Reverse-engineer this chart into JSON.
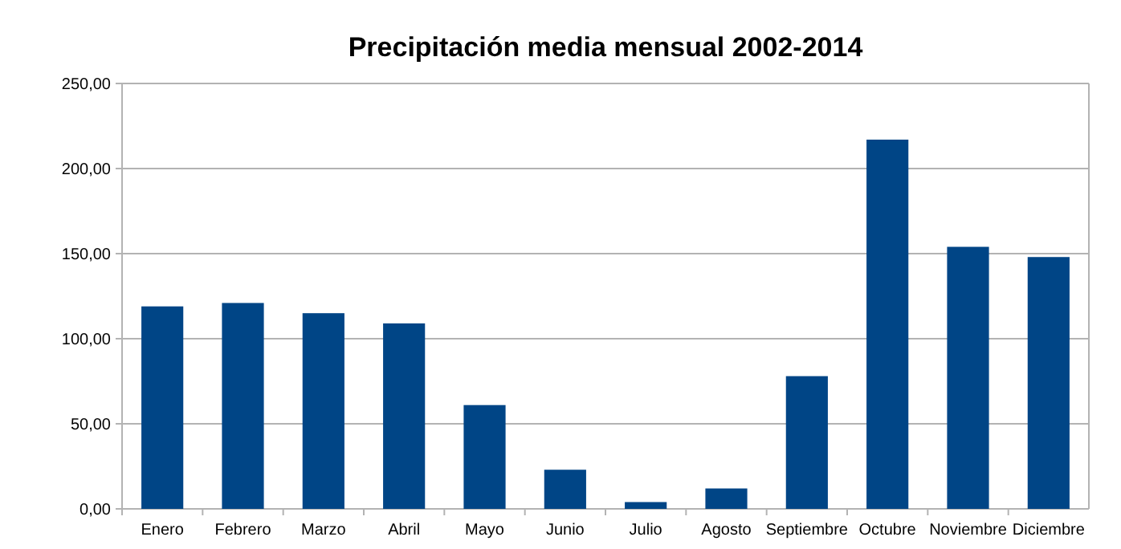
{
  "chart_data": {
    "type": "bar",
    "title": "Precipitación media mensual 2002-2014",
    "categories": [
      "Enero",
      "Febrero",
      "Marzo",
      "Abril",
      "Mayo",
      "Junio",
      "Julio",
      "Agosto",
      "Septiembre",
      "Octubre",
      "Noviembre",
      "Diciembre"
    ],
    "values": [
      119,
      121,
      115,
      109,
      61,
      23,
      4,
      12,
      78,
      217,
      154,
      148
    ],
    "color": "#004586",
    "ylim": [
      0,
      250
    ],
    "yticks": [
      {
        "value": 0,
        "label": "0,00"
      },
      {
        "value": 50,
        "label": "50,00"
      },
      {
        "value": 100,
        "label": "100,00"
      },
      {
        "value": 150,
        "label": "150,00"
      },
      {
        "value": 200,
        "label": "200,00"
      },
      {
        "value": 250,
        "label": "250,00"
      }
    ],
    "grid": true
  }
}
